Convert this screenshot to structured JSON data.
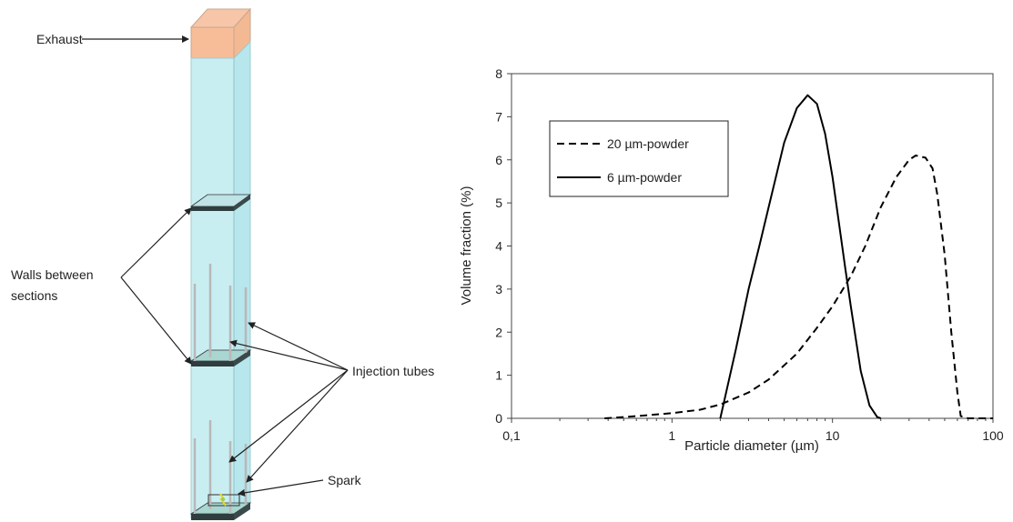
{
  "apparatus": {
    "labels": {
      "exhaust": "Exhaust",
      "walls_line1": "Walls between",
      "walls_line2": "sections",
      "injection_tubes": "Injection tubes",
      "spark": "Spark"
    }
  },
  "chart_data": {
    "type": "line",
    "title": "",
    "xlabel": "Particle diameter (µm)",
    "ylabel": "Volume fraction (%)",
    "x_scale": "log",
    "xlim": [
      0.1,
      100
    ],
    "ylim": [
      0,
      8
    ],
    "x_ticks": [
      {
        "value": 0.1,
        "label": "0,1"
      },
      {
        "value": 1,
        "label": "1"
      },
      {
        "value": 10,
        "label": "10"
      },
      {
        "value": 100,
        "label": "100"
      }
    ],
    "y_ticks": [
      {
        "value": 0,
        "label": "0"
      },
      {
        "value": 1,
        "label": "1"
      },
      {
        "value": 2,
        "label": "2"
      },
      {
        "value": 3,
        "label": "3"
      },
      {
        "value": 4,
        "label": "4"
      },
      {
        "value": 5,
        "label": "5"
      },
      {
        "value": 6,
        "label": "6"
      },
      {
        "value": 7,
        "label": "7"
      },
      {
        "value": 8,
        "label": "8"
      }
    ],
    "grid": false,
    "legend_position": "top-left",
    "series": [
      {
        "name": "20 µm-powder",
        "style": "dashed",
        "color": "#000000",
        "x": [
          0.38,
          0.6,
          1.0,
          1.5,
          2.0,
          3.0,
          4.0,
          6.0,
          8.0,
          10.0,
          13.0,
          16.0,
          20.0,
          25.0,
          30.0,
          33.0,
          38.0,
          42.0,
          45.0,
          50.0,
          55.0,
          60.0,
          63.0,
          70.0,
          85.0,
          100.0
        ],
        "y": [
          0.0,
          0.05,
          0.12,
          0.2,
          0.32,
          0.6,
          0.9,
          1.5,
          2.1,
          2.6,
          3.3,
          4.0,
          4.9,
          5.6,
          6.0,
          6.1,
          6.05,
          5.8,
          5.2,
          3.8,
          2.0,
          0.6,
          0.05,
          0.0,
          0.0,
          0.0
        ]
      },
      {
        "name": "6 µm-powder",
        "style": "solid",
        "color": "#000000",
        "x": [
          2.0,
          2.5,
          3.0,
          3.5,
          4.0,
          5.0,
          6.0,
          7.0,
          8.0,
          9.0,
          10.0,
          11.0,
          12.0,
          13.0,
          15.0,
          17.0,
          19.0,
          20.0
        ],
        "y": [
          0.0,
          1.6,
          3.0,
          4.0,
          4.9,
          6.4,
          7.2,
          7.5,
          7.3,
          6.6,
          5.6,
          4.5,
          3.5,
          2.6,
          1.1,
          0.3,
          0.03,
          0.0
        ]
      }
    ]
  }
}
